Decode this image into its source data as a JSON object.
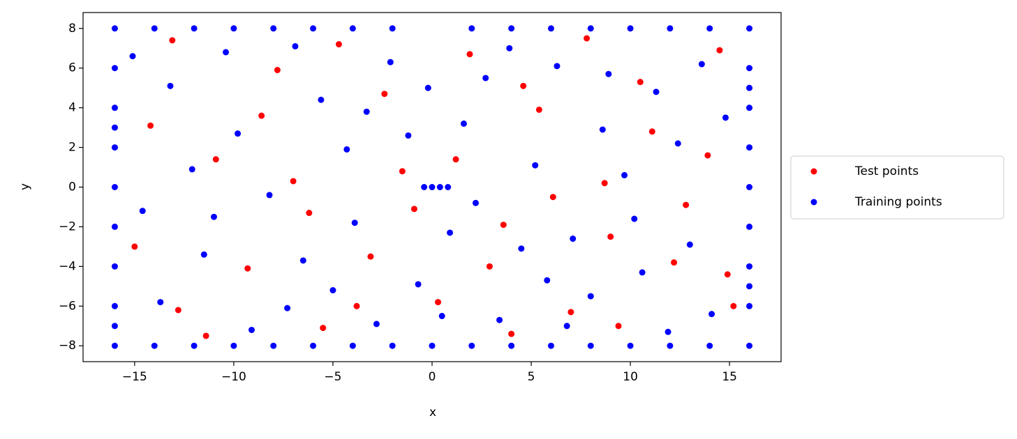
{
  "chart_data": {
    "type": "scatter",
    "xlabel": "x",
    "ylabel": "y",
    "xlim": [
      -17.6,
      17.6
    ],
    "ylim": [
      -8.8,
      8.8
    ],
    "xticks": [
      {
        "value": -15,
        "label": "−15"
      },
      {
        "value": -10,
        "label": "−10"
      },
      {
        "value": -5,
        "label": "−5"
      },
      0,
      5,
      10,
      15
    ],
    "yticks": [
      {
        "value": -8,
        "label": "−8"
      },
      {
        "value": -6,
        "label": "−6"
      },
      {
        "value": -4,
        "label": "−4"
      },
      {
        "value": -2,
        "label": "−2"
      },
      0,
      2,
      4,
      6,
      8
    ],
    "legend": "outside-right",
    "series": [
      {
        "name": "Test points",
        "color": "#ff0000",
        "x": [
          -14.2,
          -12.8,
          -10.9,
          -9.3,
          -7.8,
          -6.2,
          -4.7,
          -3.1,
          -1.5,
          0.3,
          1.9,
          3.6,
          5.4,
          7.0,
          8.7,
          10.5,
          12.2,
          13.9,
          15.2,
          -15.0,
          -13.1,
          -11.4,
          -8.6,
          -5.5,
          -2.4,
          -0.9,
          1.2,
          2.9,
          4.6,
          6.1,
          7.8,
          9.4,
          11.1,
          12.8,
          14.5,
          -7.0,
          -3.8,
          4.0,
          9.0,
          14.9
        ],
        "values": [
          3.1,
          -6.2,
          1.4,
          -4.1,
          5.9,
          -1.3,
          7.2,
          -3.5,
          0.8,
          -5.8,
          6.7,
          -1.9,
          3.9,
          -6.3,
          0.2,
          5.3,
          -3.8,
          1.6,
          -6.0,
          -3.0,
          7.4,
          -7.5,
          3.6,
          -7.1,
          4.7,
          -1.1,
          1.4,
          -4.0,
          5.1,
          -0.5,
          7.5,
          -7.0,
          2.8,
          -0.9,
          6.9,
          0.3,
          -6.0,
          -7.4,
          -2.5,
          -4.4
        ]
      },
      {
        "name": "Training points",
        "color": "#0000ff",
        "x": [
          -16,
          -16,
          -16,
          -16,
          -16,
          -16,
          -16,
          -16,
          -16,
          -16,
          -16,
          16,
          16,
          16,
          16,
          16,
          16,
          16,
          16,
          16,
          16,
          16,
          -14,
          -12,
          -10,
          -8,
          -6,
          -4,
          -2,
          2,
          4,
          6,
          8,
          10,
          12,
          14,
          -14,
          -12,
          -10,
          -8,
          -6,
          -4,
          -2,
          0,
          2,
          4,
          6,
          8,
          10,
          12,
          14,
          0,
          0.4,
          0.8,
          -0.4,
          -13.2,
          -11.5,
          -9.8,
          -7.3,
          -5.6,
          -3.9,
          -2.1,
          -0.7,
          1.6,
          3.4,
          5.2,
          7.1,
          8.9,
          10.6,
          12.4,
          14.1,
          -14.6,
          -12.1,
          -10.4,
          -8.2,
          -6.5,
          -4.3,
          -2.8,
          -1.2,
          0.9,
          2.7,
          4.5,
          6.3,
          8.0,
          9.7,
          11.3,
          13.0,
          14.8,
          -15.1,
          -13.7,
          -9.1,
          -6.9,
          -3.3,
          -0.2,
          2.2,
          3.9,
          6.8,
          8.6,
          11.9,
          13.6,
          -11.0,
          -5.0,
          0.5,
          5.8,
          10.2
        ],
        "values": [
          -8,
          -6,
          -4,
          -2,
          0,
          2,
          4,
          6,
          8,
          -7,
          3,
          -8,
          -6,
          -4,
          -2,
          0,
          2,
          4,
          6,
          8,
          -5,
          5,
          8,
          8,
          8,
          8,
          8,
          8,
          8,
          8,
          8,
          8,
          8,
          8,
          8,
          8,
          -8,
          -8,
          -8,
          -8,
          -8,
          -8,
          -8,
          -8,
          -8,
          -8,
          -8,
          -8,
          -8,
          -8,
          -8,
          0,
          0,
          0,
          0,
          5.1,
          -3.4,
          2.7,
          -6.1,
          4.4,
          -1.8,
          6.3,
          -4.9,
          3.2,
          -6.7,
          1.1,
          -2.6,
          5.7,
          -4.3,
          2.2,
          -6.4,
          -1.2,
          0.9,
          6.8,
          -0.4,
          -3.7,
          1.9,
          -6.9,
          2.6,
          -2.3,
          5.5,
          -3.1,
          6.1,
          -5.5,
          0.6,
          4.8,
          -2.9,
          3.5,
          6.6,
          -5.8,
          -7.2,
          7.1,
          3.8,
          5.0,
          -0.8,
          7.0,
          -7.0,
          2.9,
          -7.3,
          6.2,
          -1.5,
          -5.2,
          -6.5,
          -4.7,
          -1.6
        ]
      }
    ]
  }
}
